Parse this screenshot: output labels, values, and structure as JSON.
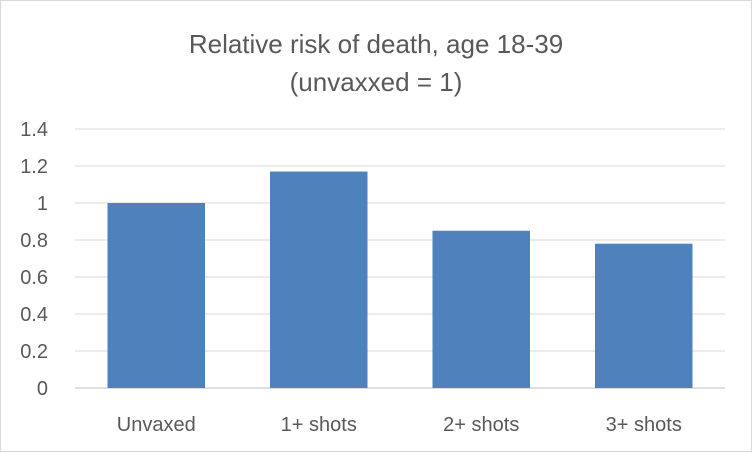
{
  "chart_data": {
    "type": "bar",
    "title_lines": [
      "Relative risk of death, age 18-39",
      "(unvaxxed = 1)"
    ],
    "categories": [
      "Unvaxed",
      "1+ shots",
      "2+ shots",
      "3+ shots"
    ],
    "values": [
      1.0,
      1.17,
      0.85,
      0.78
    ],
    "xlabel": "",
    "ylabel": "",
    "ylim": [
      0,
      1.4
    ],
    "yticks": [
      "0",
      "0.2",
      "0.4",
      "0.6",
      "0.8",
      "1",
      "1.2",
      "1.4"
    ],
    "grid": true,
    "legend": "none",
    "bar_color": "#4f81bd"
  }
}
